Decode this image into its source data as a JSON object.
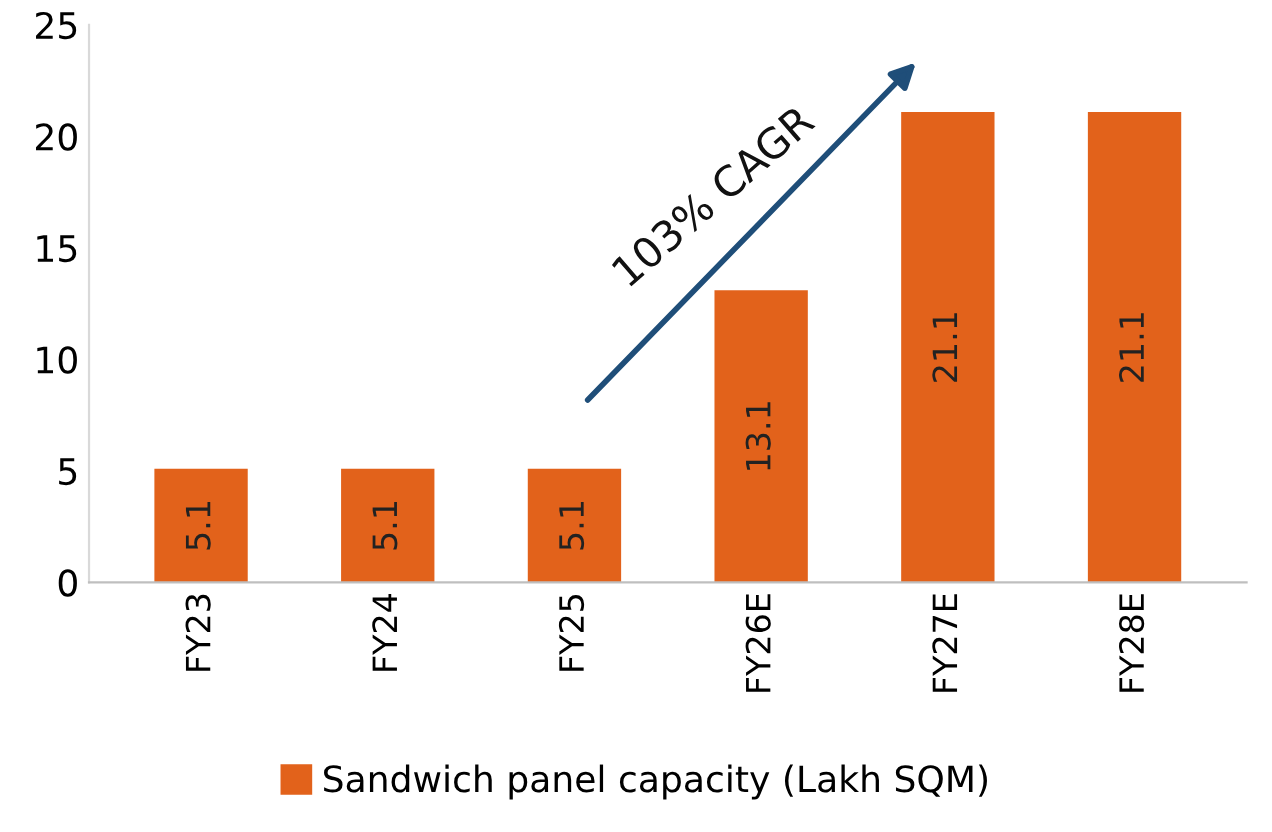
{
  "chart_data": {
    "type": "bar",
    "categories": [
      "FY23",
      "FY24",
      "FY25",
      "FY26E",
      "FY27E",
      "FY28E"
    ],
    "series": [
      {
        "name": "Sandwich panel capacity (Lakh SQM)",
        "color": "#e2621b",
        "values": [
          5.1,
          5.1,
          5.1,
          13.1,
          21.1,
          21.1
        ]
      }
    ],
    "ylim": [
      0,
      25
    ],
    "yticks": [
      0,
      5,
      10,
      15,
      20,
      25
    ],
    "grid": false,
    "legend": "bottom",
    "data_labels": true,
    "annotations": [
      "103% CAGR"
    ]
  }
}
